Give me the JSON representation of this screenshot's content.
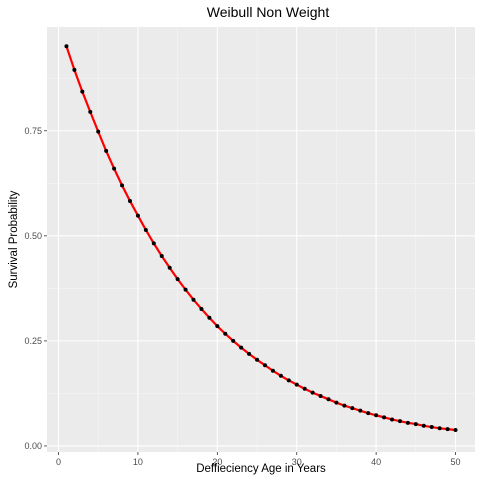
{
  "chart_data": {
    "type": "line",
    "title": "Weibull Non Weight",
    "xlabel": "Deffieciency Age in Years",
    "ylabel": "Survival Probability",
    "xlim": [
      -1.45,
      52.45
    ],
    "ylim": [
      -0.0144,
      0.9969
    ],
    "x_ticks": [
      0,
      10,
      20,
      30,
      40,
      50
    ],
    "x_tick_labels": [
      "0",
      "10",
      "20",
      "30",
      "40",
      "50"
    ],
    "y_ticks": [
      0.0,
      0.25,
      0.5,
      0.75
    ],
    "y_tick_labels": [
      "0.00",
      "0.25",
      "0.50",
      "0.75"
    ],
    "grid": true,
    "legend": "none",
    "colors": {
      "panel_background": "#EBEBEB",
      "grid_major": "#FFFFFF",
      "grid_minor": "#F5F5F5",
      "line": "#FF0000",
      "points": "#000000"
    },
    "series": [
      {
        "x": [
          1,
          2,
          3,
          4,
          5,
          6,
          7,
          8,
          9,
          10,
          11,
          12,
          13,
          14,
          15,
          16,
          17,
          18,
          19,
          20,
          21,
          22,
          23,
          24,
          25,
          26,
          27,
          28,
          29,
          30,
          31,
          32,
          33,
          34,
          35,
          36,
          37,
          38,
          39,
          40,
          41,
          42,
          43,
          44,
          45,
          46,
          47,
          48,
          49,
          50
        ],
        "values": [
          0.951,
          0.895,
          0.843,
          0.795,
          0.748,
          0.702,
          0.66,
          0.62,
          0.583,
          0.548,
          0.514,
          0.482,
          0.452,
          0.424,
          0.397,
          0.372,
          0.348,
          0.326,
          0.305,
          0.285,
          0.267,
          0.25,
          0.234,
          0.219,
          0.205,
          0.192,
          0.179,
          0.167,
          0.156,
          0.146,
          0.136,
          0.127,
          0.119,
          0.111,
          0.103,
          0.096,
          0.09,
          0.084,
          0.078,
          0.073,
          0.068,
          0.063,
          0.059,
          0.055,
          0.052,
          0.048,
          0.045,
          0.042,
          0.04,
          0.038
        ]
      }
    ]
  }
}
